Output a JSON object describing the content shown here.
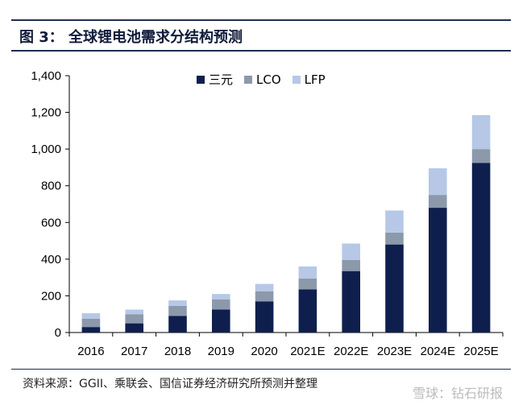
{
  "header": {
    "title": "图 3：  全球锂电池需求分结构预测"
  },
  "footer": {
    "source": "资料来源：GGII、乘联会、国信证券经济研究所预测并整理",
    "watermark": "雪球：钻石研报"
  },
  "chart_data": {
    "type": "bar",
    "stacked": true,
    "categories": [
      "2016",
      "2017",
      "2018",
      "2019",
      "2020",
      "2021E",
      "2022E",
      "2023E",
      "2024E",
      "2025E"
    ],
    "series": [
      {
        "name": "三元",
        "color": "#0f1f4d",
        "values": [
          30,
          50,
          90,
          125,
          170,
          235,
          335,
          480,
          680,
          925
        ]
      },
      {
        "name": "LCO",
        "color": "#8c99ab",
        "values": [
          45,
          50,
          55,
          55,
          55,
          60,
          60,
          65,
          70,
          75
        ]
      },
      {
        "name": "LFP",
        "color": "#b6c8e6",
        "values": [
          30,
          25,
          30,
          30,
          40,
          65,
          90,
          120,
          145,
          185
        ]
      }
    ],
    "ylim": [
      0,
      1400
    ],
    "yticks": [
      "0",
      "200",
      "400",
      "600",
      "800",
      "1,000",
      "1,200",
      "1,400"
    ],
    "ytick_values": [
      0,
      200,
      400,
      600,
      800,
      1000,
      1200,
      1400
    ],
    "legend_position": "top-center",
    "grid": false
  }
}
